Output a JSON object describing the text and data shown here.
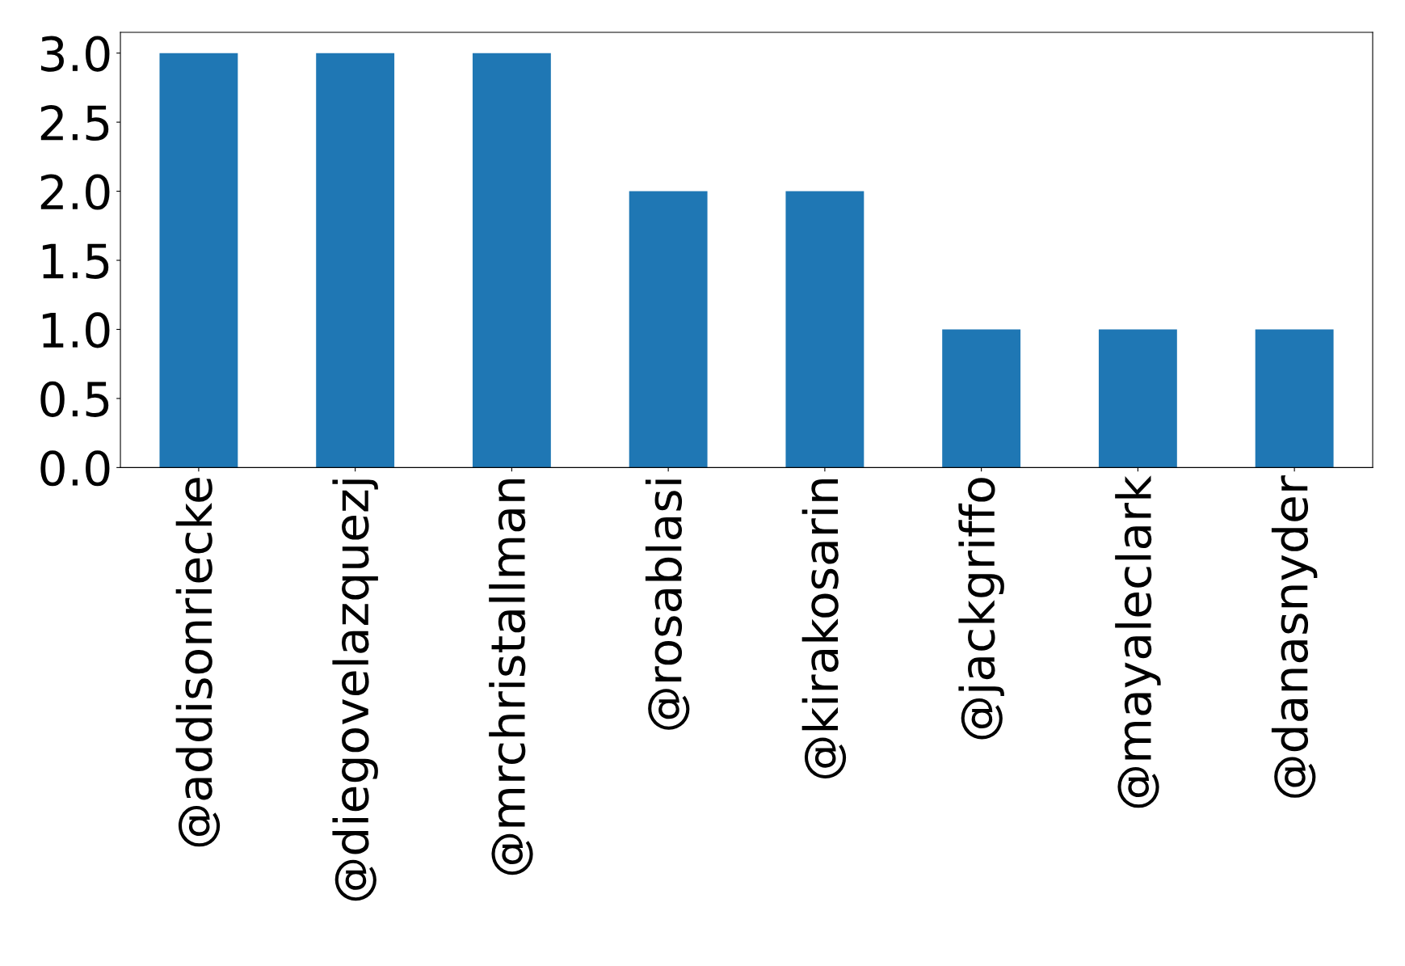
{
  "chart_data": {
    "type": "bar",
    "categories": [
      "@addisonriecke",
      "@diegovelazquezj",
      "@mrchristallman",
      "@rosablasi",
      "@kirakosarin",
      "@jackgriffo",
      "@mayaleclark",
      "@danasnyder"
    ],
    "values": [
      3,
      3,
      3,
      2,
      2,
      1,
      1,
      1
    ],
    "color": "#1f77b4",
    "ylim": [
      0,
      3.15
    ],
    "yticks": [
      {
        "value": 0,
        "label": "0.0"
      },
      {
        "value": 0.5,
        "label": "0.5"
      },
      {
        "value": 1,
        "label": "1.0"
      },
      {
        "value": 1.5,
        "label": "1.5"
      },
      {
        "value": 2,
        "label": "2.0"
      },
      {
        "value": 2.5,
        "label": "2.5"
      },
      {
        "value": 3,
        "label": "3.0"
      }
    ],
    "grid": false
  }
}
